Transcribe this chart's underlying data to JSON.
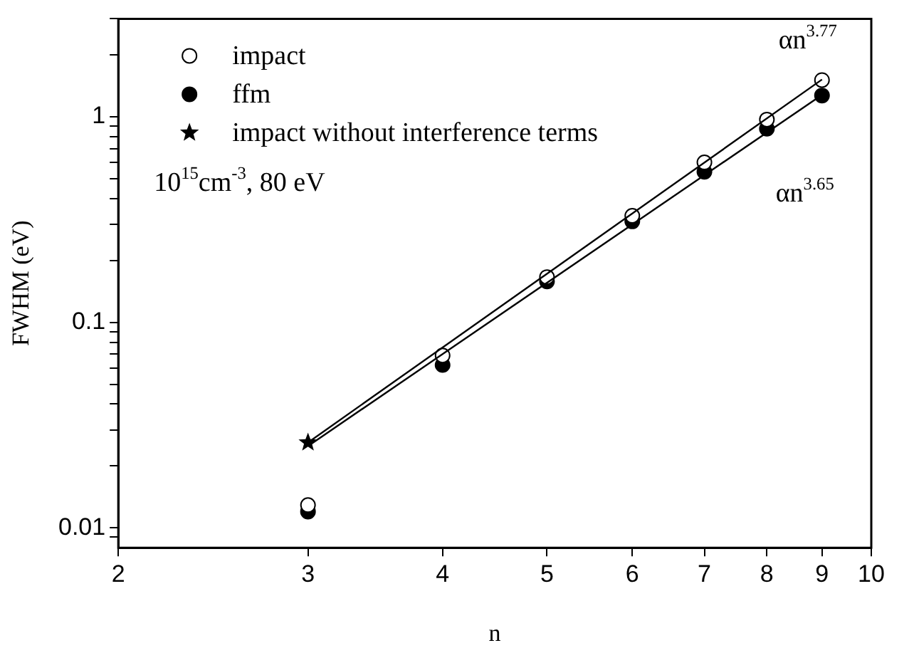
{
  "chart_data": {
    "type": "scatter",
    "xlabel": "n",
    "ylabel": "FWHM (eV)",
    "log": "xy",
    "grid": false,
    "legend": "top left",
    "xlim": [
      2,
      10
    ],
    "xticks": [
      2,
      3,
      4,
      5,
      6,
      7,
      8,
      9,
      10
    ],
    "ylim": [
      0.008,
      3
    ],
    "yticks": [
      {
        "value": 0.009,
        "label": null
      },
      0.01,
      {
        "value": 0.02,
        "label": null
      },
      {
        "value": 0.03,
        "label": null
      },
      {
        "value": 0.04,
        "label": null
      },
      {
        "value": 0.05,
        "label": null
      },
      {
        "value": 0.06,
        "label": null
      },
      {
        "value": 0.07,
        "label": null
      },
      {
        "value": 0.08,
        "label": null
      },
      {
        "value": 0.09,
        "label": null
      },
      0.1,
      {
        "value": 0.2,
        "label": null
      },
      {
        "value": 0.3,
        "label": null
      },
      {
        "value": 0.4,
        "label": null
      },
      {
        "value": 0.5,
        "label": null
      },
      {
        "value": 0.6,
        "label": null
      },
      {
        "value": 0.7,
        "label": null
      },
      {
        "value": 0.8,
        "label": null
      },
      {
        "value": 0.9,
        "label": null
      },
      1,
      {
        "value": 2,
        "label": null
      },
      {
        "value": 3,
        "label": null
      }
    ],
    "series": [
      {
        "type": "line",
        "x": [
          3,
          9
        ],
        "values": [
          0.026,
          1.52
        ],
        "color": "#000000",
        "marker": "none",
        "line_style": "solid"
      },
      {
        "type": "line",
        "x": [
          3,
          9
        ],
        "values": [
          0.025,
          1.28
        ],
        "color": "#000000",
        "marker": "none",
        "line_style": "solid"
      },
      {
        "name": "impact",
        "x": [
          3,
          4,
          5,
          6,
          7,
          8,
          9
        ],
        "values": [
          0.0129,
          0.069,
          0.166,
          0.33,
          0.6,
          0.97,
          1.51
        ],
        "color": "#ffffff",
        "marker": "circle"
      },
      {
        "name": "ffm",
        "x": [
          3,
          4,
          5,
          6,
          7,
          8,
          9
        ],
        "values": [
          0.012,
          0.062,
          0.158,
          0.31,
          0.54,
          0.875,
          1.27
        ],
        "color": "#000000",
        "marker": "circle"
      },
      {
        "name": "impact without interference terms",
        "x": [
          3
        ],
        "values": [
          0.026
        ],
        "color": "#000000",
        "marker": "star"
      }
    ],
    "annotations": [
      "αn$^{3.77}$",
      "αn$^{3.65}$",
      "10$^{15}$cm$^{-3}$, 80 eV"
    ]
  }
}
